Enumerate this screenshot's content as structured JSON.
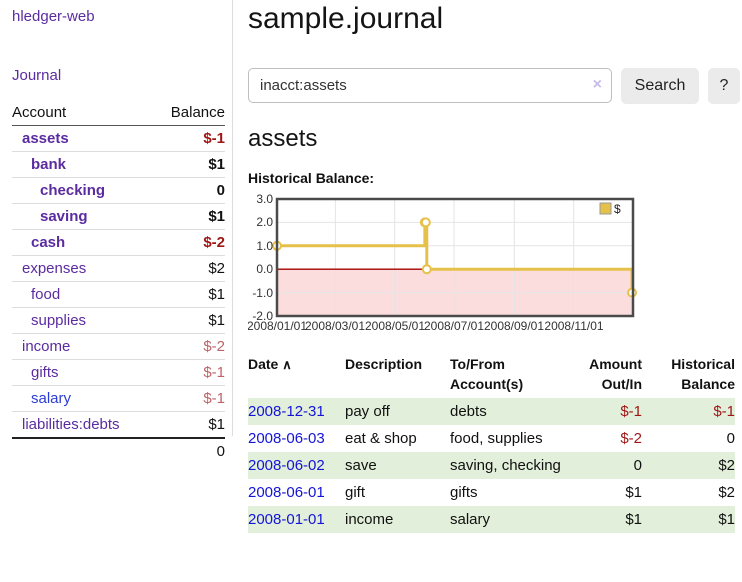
{
  "app": {
    "brand": "hledger-web"
  },
  "nav": {
    "journal": "Journal"
  },
  "sidebar": {
    "header": {
      "account": "Account",
      "balance": "Balance"
    },
    "accounts": [
      {
        "name": "assets",
        "balance": "$-1",
        "depth": 0,
        "in_query": true
      },
      {
        "name": "bank",
        "balance": "$1",
        "depth": 1,
        "in_query": true
      },
      {
        "name": "checking",
        "balance": "0",
        "depth": 2,
        "in_query": true
      },
      {
        "name": "saving",
        "balance": "$1",
        "depth": 2,
        "in_query": true
      },
      {
        "name": "cash",
        "balance": "$-2",
        "depth": 1,
        "in_query": true
      },
      {
        "name": "expenses",
        "balance": "$2",
        "depth": 0,
        "in_query": false
      },
      {
        "name": "food",
        "balance": "$1",
        "depth": 1,
        "in_query": false
      },
      {
        "name": "supplies",
        "balance": "$1",
        "depth": 1,
        "in_query": false
      },
      {
        "name": "income",
        "balance": "$-2",
        "depth": 0,
        "in_query": false
      },
      {
        "name": "gifts",
        "balance": "$-1",
        "depth": 1,
        "in_query": false
      },
      {
        "name": "salary",
        "balance": "$-1",
        "depth": 1,
        "in_query": false
      },
      {
        "name": "liabilities:debts",
        "balance": "$1",
        "depth": 0,
        "in_query": false
      }
    ],
    "total": "0"
  },
  "header": {
    "title": "sample.journal"
  },
  "search": {
    "query": "inacct:assets",
    "clear_icon": "×",
    "button": "Search",
    "help_button": "?"
  },
  "account_page": {
    "heading": "assets",
    "chart_label": "Historical Balance:"
  },
  "chart_data": {
    "type": "line",
    "style": "step",
    "title": "Historical Balance",
    "legend": {
      "label": "$",
      "position": "top-right"
    },
    "xrange": [
      "2008-01-01",
      "2009-01-01"
    ],
    "ylim": [
      -2,
      3
    ],
    "series": [
      {
        "name": "$",
        "points": [
          [
            "2008-01-01",
            1
          ],
          [
            "2008-06-01",
            2
          ],
          [
            "2008-06-02",
            2
          ],
          [
            "2008-06-03",
            0
          ],
          [
            "2008-12-31",
            -1
          ]
        ]
      }
    ],
    "ytick_values": [
      3,
      2,
      1,
      0,
      -1,
      -2
    ],
    "ytick_labels": [
      "3.0",
      "2.0",
      "1.0",
      "0.0",
      "-1.0",
      "-2.0"
    ],
    "xtick_dates": [
      "2008-01-01",
      "2008-03-01",
      "2008-05-01",
      "2008-07-01",
      "2008-09-01",
      "2008-11-01"
    ],
    "xtick_labels": [
      "2008/01/01",
      "2008/03/01",
      "2008/05/01",
      "2008/07/01",
      "2008/09/01",
      "2008/11/01"
    ],
    "grid": true,
    "negative_region_highlight": true,
    "colors": {
      "line": "#e6c14a",
      "marker_fill": "#ffffff",
      "negative_fill": "#fcdddd",
      "zero_line": "#a40000",
      "grid": "#e4e4e4",
      "border": "#4a4a4a"
    }
  },
  "register": {
    "sort_icon": "∧",
    "columns": [
      {
        "label": "Date"
      },
      {
        "label": "Description"
      },
      {
        "label": "To/From Account(s)"
      },
      {
        "label": "Amount Out/In"
      },
      {
        "label": "Historical Balance"
      }
    ],
    "rows": [
      {
        "date": "2008-12-31",
        "description": "pay off",
        "accounts": "debts",
        "amount": "$-1",
        "balance": "$-1"
      },
      {
        "date": "2008-06-03",
        "description": "eat & shop",
        "accounts": "food, supplies",
        "amount": "$-2",
        "balance": "0"
      },
      {
        "date": "2008-06-02",
        "description": "save",
        "accounts": "saving, checking",
        "amount": "0",
        "balance": "$2"
      },
      {
        "date": "2008-06-01",
        "description": "gift",
        "accounts": "gifts",
        "amount": "$1",
        "balance": "$2"
      },
      {
        "date": "2008-01-01",
        "description": "income",
        "accounts": "salary",
        "amount": "$1",
        "balance": "$1"
      }
    ]
  }
}
